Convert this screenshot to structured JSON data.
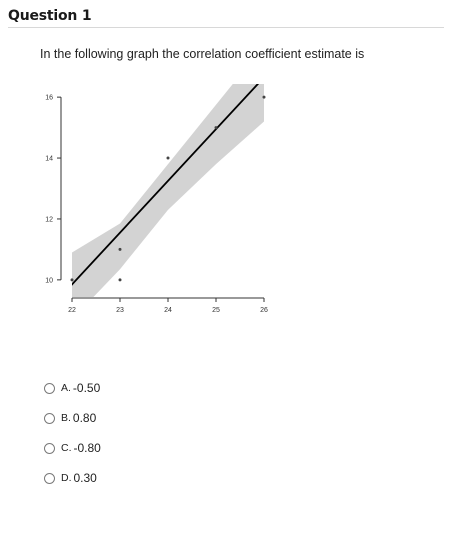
{
  "question": {
    "title": "Question 1",
    "text": "In the following graph the correlation coefficient estimate is"
  },
  "chart_data": {
    "type": "scatter",
    "title": "",
    "xlabel": "",
    "ylabel": "",
    "x_ticks": [
      22,
      23,
      24,
      25,
      26
    ],
    "y_ticks": [
      10,
      12,
      14,
      16
    ],
    "xlim": [
      22,
      26
    ],
    "ylim": [
      9.7,
      16.3
    ],
    "points": [
      {
        "x": 22,
        "y": 10
      },
      {
        "x": 23,
        "y": 10
      },
      {
        "x": 23,
        "y": 11
      },
      {
        "x": 24,
        "y": 14
      },
      {
        "x": 25,
        "y": 15
      },
      {
        "x": 26,
        "y": 16
      }
    ],
    "fit_line": {
      "slope": 1.7,
      "intercept": -27.55
    },
    "confidence_band": {
      "x": [
        22,
        23,
        24,
        25,
        26
      ],
      "lower": [
        8.7,
        10.35,
        12.3,
        13.8,
        15.2
      ],
      "upper": [
        10.9,
        11.85,
        13.8,
        15.75,
        17.7
      ]
    },
    "colors": {
      "points": "#444444",
      "line": "#000000",
      "band": "#d3d3d3"
    }
  },
  "options": [
    {
      "letter": "A.",
      "value": "-0.50"
    },
    {
      "letter": "B.",
      "value": "0.80"
    },
    {
      "letter": "C.",
      "value": "-0.80"
    },
    {
      "letter": "D.",
      "value": "0.30"
    }
  ]
}
